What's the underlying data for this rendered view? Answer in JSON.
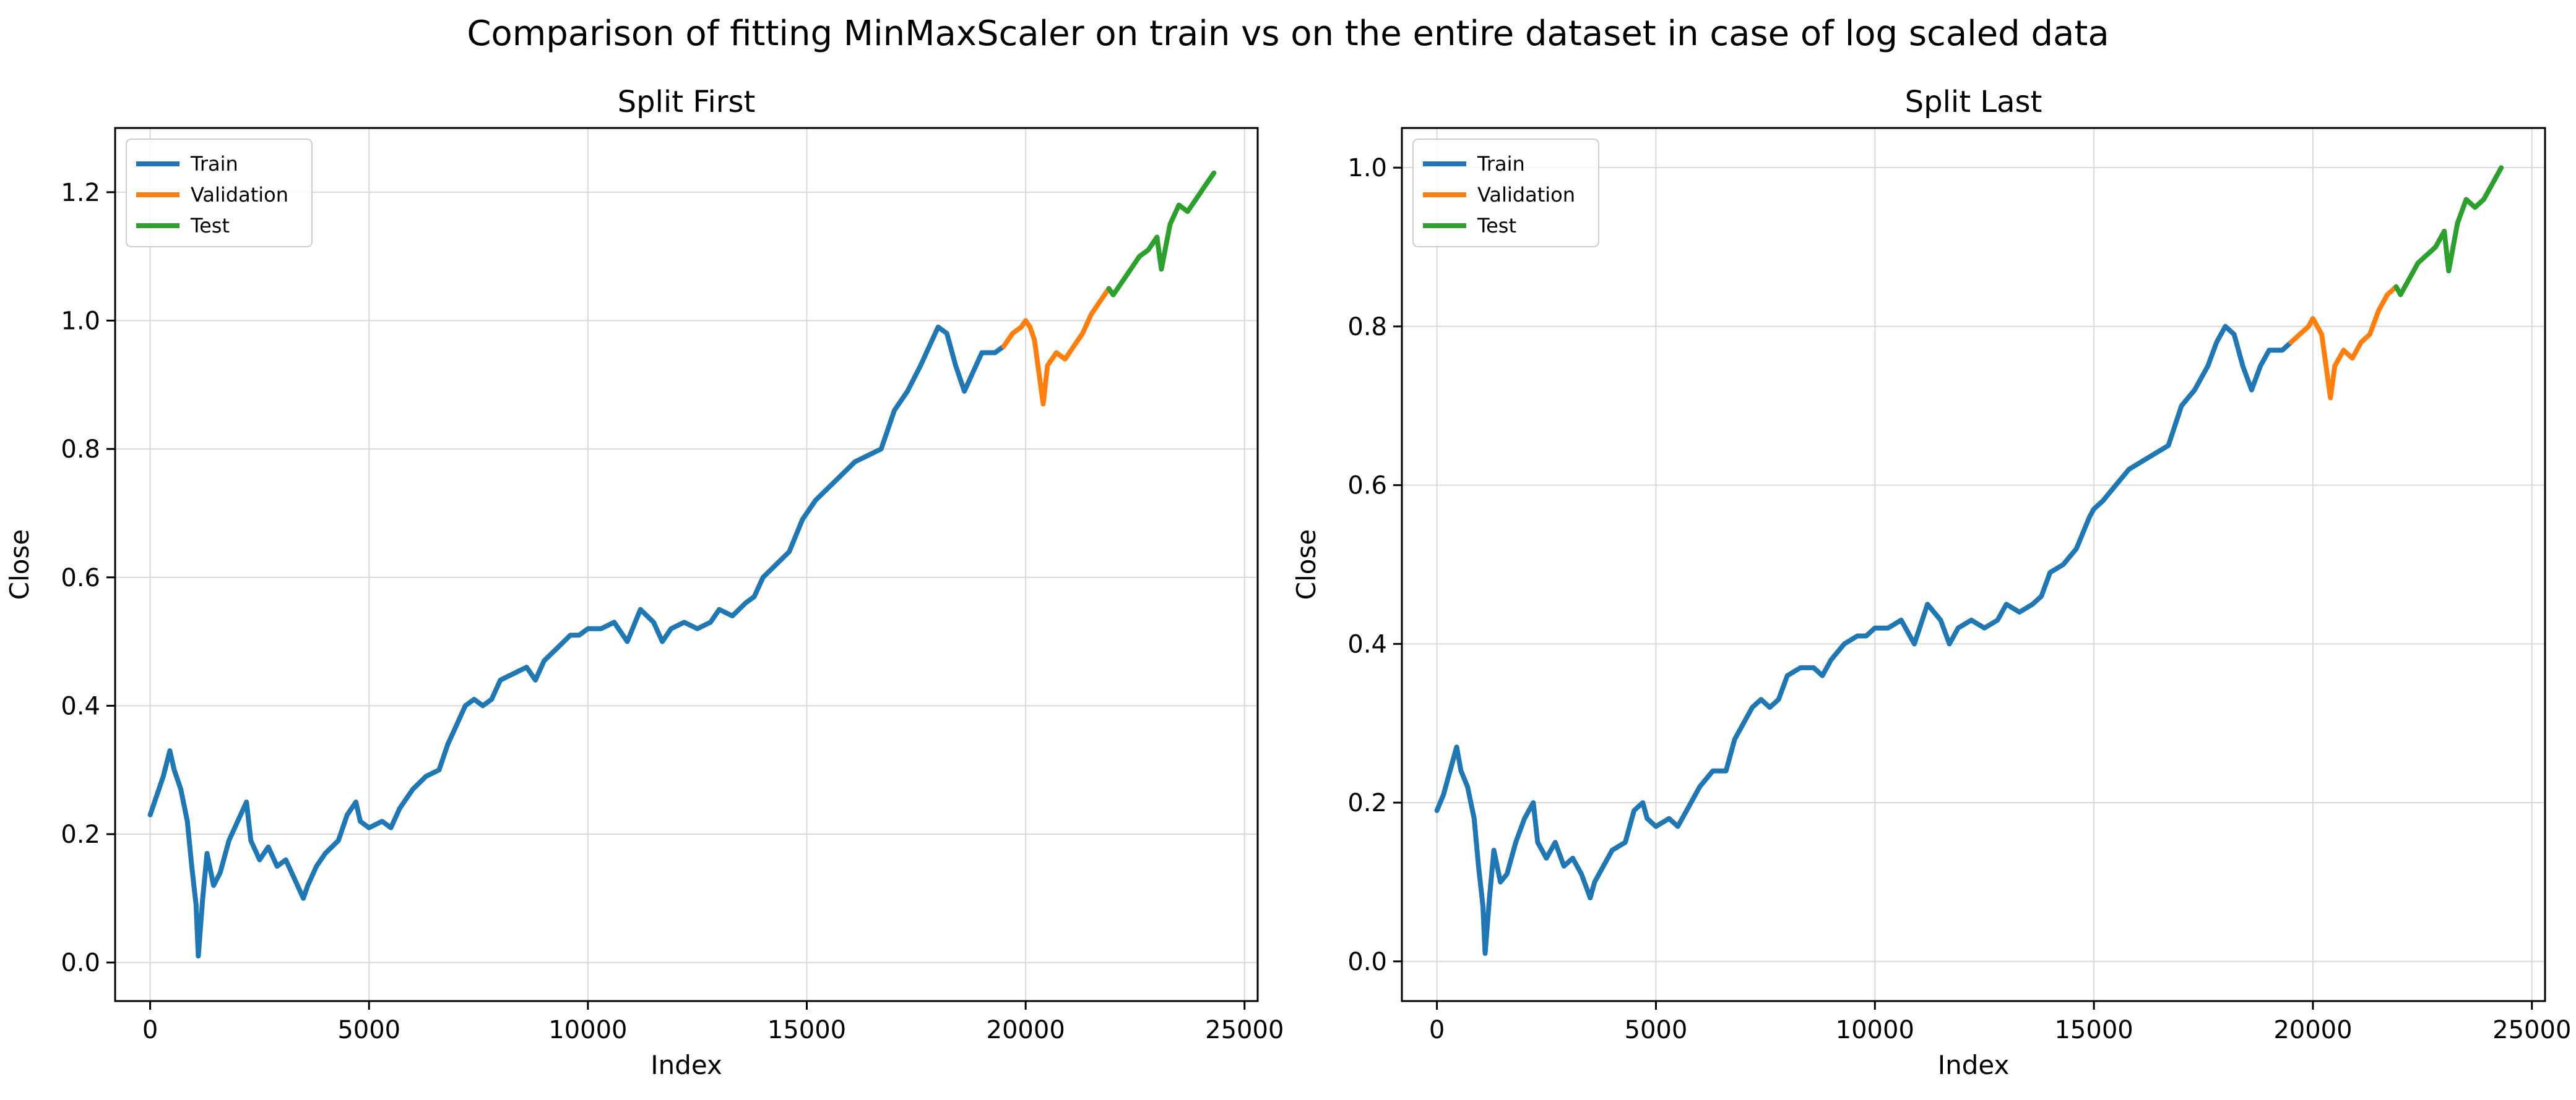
{
  "figure": {
    "suptitle": "Comparison of fitting MinMaxScaler on train vs on the entire dataset in case of log scaled data",
    "colors": {
      "Train": "#1f77b4",
      "Validation": "#ff7f0e",
      "Test": "#2ca02c",
      "grid": "#d9d9d9"
    }
  },
  "chart_data": [
    {
      "type": "line",
      "title": "Split First",
      "xlabel": "Index",
      "ylabel": "Close",
      "xlim": [
        -800,
        25300
      ],
      "ylim": [
        -0.06,
        1.3
      ],
      "xticks": [
        0,
        5000,
        10000,
        15000,
        20000,
        25000
      ],
      "yticks": [
        0.0,
        0.2,
        0.4,
        0.6,
        0.8,
        1.0,
        1.2
      ],
      "ytick_labels": [
        "0.0",
        "0.2",
        "0.4",
        "0.6",
        "0.8",
        "1.0",
        "1.2"
      ],
      "grid": true,
      "legend": "top-left",
      "series": [
        {
          "name": "Train",
          "color": "#1f77b4",
          "x": [
            0,
            150,
            300,
            450,
            550,
            700,
            850,
            950,
            1050,
            1100,
            1200,
            1300,
            1450,
            1600,
            1800,
            2000,
            2200,
            2300,
            2500,
            2700,
            2900,
            3100,
            3300,
            3500,
            3600,
            3800,
            4000,
            4300,
            4500,
            4700,
            4800,
            5000,
            5300,
            5500,
            5700,
            6000,
            6300,
            6600,
            6800,
            7000,
            7200,
            7400,
            7600,
            7800,
            8000,
            8300,
            8600,
            8800,
            9000,
            9300,
            9600,
            9800,
            10000,
            10300,
            10600,
            10900,
            11200,
            11500,
            11700,
            11900,
            12200,
            12500,
            12800,
            13000,
            13300,
            13600,
            13800,
            14000,
            14300,
            14600,
            14900,
            15000,
            15200,
            15500,
            15800,
            16100,
            16400,
            16700,
            17000,
            17300,
            17600,
            17800,
            18000,
            18200,
            18400,
            18600,
            18800,
            19000,
            19300,
            19500
          ],
          "y": [
            0.23,
            0.26,
            0.29,
            0.33,
            0.3,
            0.27,
            0.22,
            0.15,
            0.09,
            0.01,
            0.1,
            0.17,
            0.12,
            0.14,
            0.19,
            0.22,
            0.25,
            0.19,
            0.16,
            0.18,
            0.15,
            0.16,
            0.13,
            0.1,
            0.12,
            0.15,
            0.17,
            0.19,
            0.23,
            0.25,
            0.22,
            0.21,
            0.22,
            0.21,
            0.24,
            0.27,
            0.29,
            0.3,
            0.34,
            0.37,
            0.4,
            0.41,
            0.4,
            0.41,
            0.44,
            0.45,
            0.46,
            0.44,
            0.47,
            0.49,
            0.51,
            0.51,
            0.52,
            0.52,
            0.53,
            0.5,
            0.55,
            0.53,
            0.5,
            0.52,
            0.53,
            0.52,
            0.53,
            0.55,
            0.54,
            0.56,
            0.57,
            0.6,
            0.62,
            0.64,
            0.69,
            0.7,
            0.72,
            0.74,
            0.76,
            0.78,
            0.79,
            0.8,
            0.86,
            0.89,
            0.93,
            0.96,
            0.99,
            0.98,
            0.93,
            0.89,
            0.92,
            0.95,
            0.95,
            0.96
          ]
        },
        {
          "name": "Validation",
          "color": "#ff7f0e",
          "x": [
            19500,
            19700,
            19900,
            20000,
            20100,
            20200,
            20300,
            20400,
            20500,
            20700,
            20900,
            21100,
            21300,
            21500,
            21700,
            21900
          ],
          "y": [
            0.96,
            0.98,
            0.99,
            1.0,
            0.99,
            0.97,
            0.92,
            0.87,
            0.93,
            0.95,
            0.94,
            0.96,
            0.98,
            1.01,
            1.03,
            1.05
          ]
        },
        {
          "name": "Test",
          "color": "#2ca02c",
          "x": [
            21900,
            22000,
            22200,
            22400,
            22600,
            22800,
            23000,
            23100,
            23300,
            23500,
            23700,
            23900,
            24100,
            24300
          ],
          "y": [
            1.05,
            1.04,
            1.06,
            1.08,
            1.1,
            1.11,
            1.13,
            1.08,
            1.15,
            1.18,
            1.17,
            1.19,
            1.21,
            1.23
          ]
        }
      ]
    },
    {
      "type": "line",
      "title": "Split Last",
      "xlabel": "Index",
      "ylabel": "Close",
      "xlim": [
        -800,
        25300
      ],
      "ylim": [
        -0.05,
        1.05
      ],
      "xticks": [
        0,
        5000,
        10000,
        15000,
        20000,
        25000
      ],
      "yticks": [
        0.0,
        0.2,
        0.4,
        0.6,
        0.8,
        1.0
      ],
      "ytick_labels": [
        "0.0",
        "0.2",
        "0.4",
        "0.6",
        "0.8",
        "1.0"
      ],
      "grid": true,
      "legend": "top-left",
      "series": [
        {
          "name": "Train",
          "color": "#1f77b4",
          "x": [
            0,
            150,
            300,
            450,
            550,
            700,
            850,
            950,
            1050,
            1100,
            1200,
            1300,
            1450,
            1600,
            1800,
            2000,
            2200,
            2300,
            2500,
            2700,
            2900,
            3100,
            3300,
            3500,
            3600,
            3800,
            4000,
            4300,
            4500,
            4700,
            4800,
            5000,
            5300,
            5500,
            5700,
            6000,
            6300,
            6600,
            6800,
            7000,
            7200,
            7400,
            7600,
            7800,
            8000,
            8300,
            8600,
            8800,
            9000,
            9300,
            9600,
            9800,
            10000,
            10300,
            10600,
            10900,
            11200,
            11500,
            11700,
            11900,
            12200,
            12500,
            12800,
            13000,
            13300,
            13600,
            13800,
            14000,
            14300,
            14600,
            14900,
            15000,
            15200,
            15500,
            15800,
            16100,
            16400,
            16700,
            17000,
            17300,
            17600,
            17800,
            18000,
            18200,
            18400,
            18600,
            18800,
            19000,
            19300,
            19500
          ],
          "y": [
            0.19,
            0.21,
            0.24,
            0.27,
            0.24,
            0.22,
            0.18,
            0.12,
            0.07,
            0.01,
            0.08,
            0.14,
            0.1,
            0.11,
            0.15,
            0.18,
            0.2,
            0.15,
            0.13,
            0.15,
            0.12,
            0.13,
            0.11,
            0.08,
            0.1,
            0.12,
            0.14,
            0.15,
            0.19,
            0.2,
            0.18,
            0.17,
            0.18,
            0.17,
            0.19,
            0.22,
            0.24,
            0.24,
            0.28,
            0.3,
            0.32,
            0.33,
            0.32,
            0.33,
            0.36,
            0.37,
            0.37,
            0.36,
            0.38,
            0.4,
            0.41,
            0.41,
            0.42,
            0.42,
            0.43,
            0.4,
            0.45,
            0.43,
            0.4,
            0.42,
            0.43,
            0.42,
            0.43,
            0.45,
            0.44,
            0.45,
            0.46,
            0.49,
            0.5,
            0.52,
            0.56,
            0.57,
            0.58,
            0.6,
            0.62,
            0.63,
            0.64,
            0.65,
            0.7,
            0.72,
            0.75,
            0.78,
            0.8,
            0.79,
            0.75,
            0.72,
            0.75,
            0.77,
            0.77,
            0.78
          ]
        },
        {
          "name": "Validation",
          "color": "#ff7f0e",
          "x": [
            19500,
            19700,
            19900,
            20000,
            20100,
            20200,
            20300,
            20400,
            20500,
            20700,
            20900,
            21100,
            21300,
            21500,
            21700,
            21900
          ],
          "y": [
            0.78,
            0.79,
            0.8,
            0.81,
            0.8,
            0.79,
            0.75,
            0.71,
            0.75,
            0.77,
            0.76,
            0.78,
            0.79,
            0.82,
            0.84,
            0.85
          ]
        },
        {
          "name": "Test",
          "color": "#2ca02c",
          "x": [
            21900,
            22000,
            22200,
            22400,
            22600,
            22800,
            23000,
            23100,
            23300,
            23500,
            23700,
            23900,
            24100,
            24300
          ],
          "y": [
            0.85,
            0.84,
            0.86,
            0.88,
            0.89,
            0.9,
            0.92,
            0.87,
            0.93,
            0.96,
            0.95,
            0.96,
            0.98,
            1.0
          ]
        }
      ]
    }
  ]
}
